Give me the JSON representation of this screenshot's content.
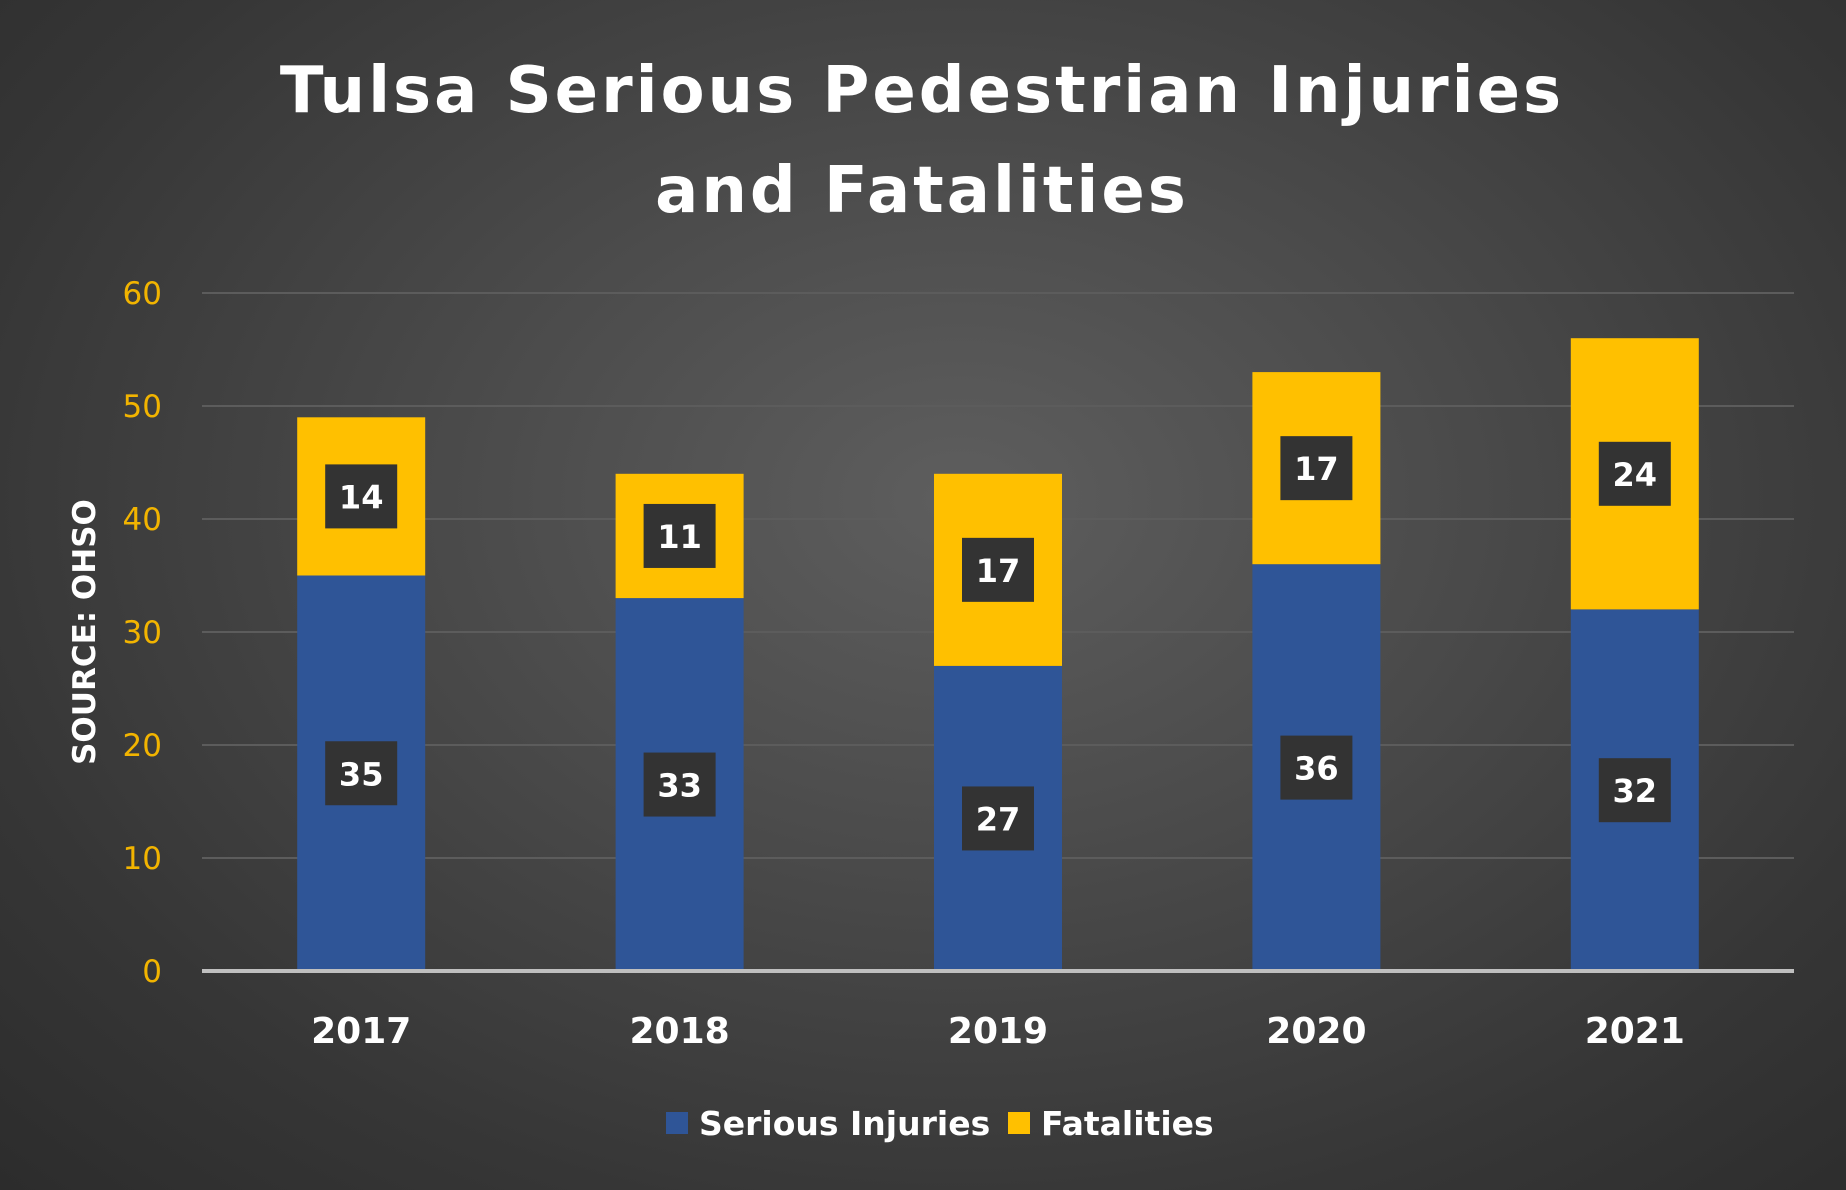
{
  "colors": {
    "background": "#444444",
    "serious_injuries": "#2f5597",
    "fatalities": "#ffc000",
    "grid": "#5c5c5c",
    "axis": "#bfbfbf",
    "y_tick": "#f2b400",
    "data_label_box": "#333333",
    "text": "#ffffff"
  },
  "chart_data": {
    "type": "bar",
    "stacked": true,
    "title": "Tulsa Serious Pedestrian Injuries and Fatalities",
    "title_lines": [
      "Tulsa Serious Pedestrian Injuries",
      "and Fatalities"
    ],
    "xlabel": "",
    "ylabel": "SOURCE: OHSO",
    "categories": [
      "2017",
      "2018",
      "2019",
      "2020",
      "2021"
    ],
    "series": [
      {
        "name": "Serious Injuries",
        "values": [
          35,
          33,
          27,
          36,
          32
        ]
      },
      {
        "name": "Fatalities",
        "values": [
          14,
          11,
          17,
          17,
          24
        ]
      }
    ],
    "ylim": [
      0,
      60
    ],
    "yticks": [
      0,
      10,
      20,
      30,
      40,
      50,
      60
    ],
    "grid": true,
    "legend": "bottom",
    "data_labels": true
  }
}
